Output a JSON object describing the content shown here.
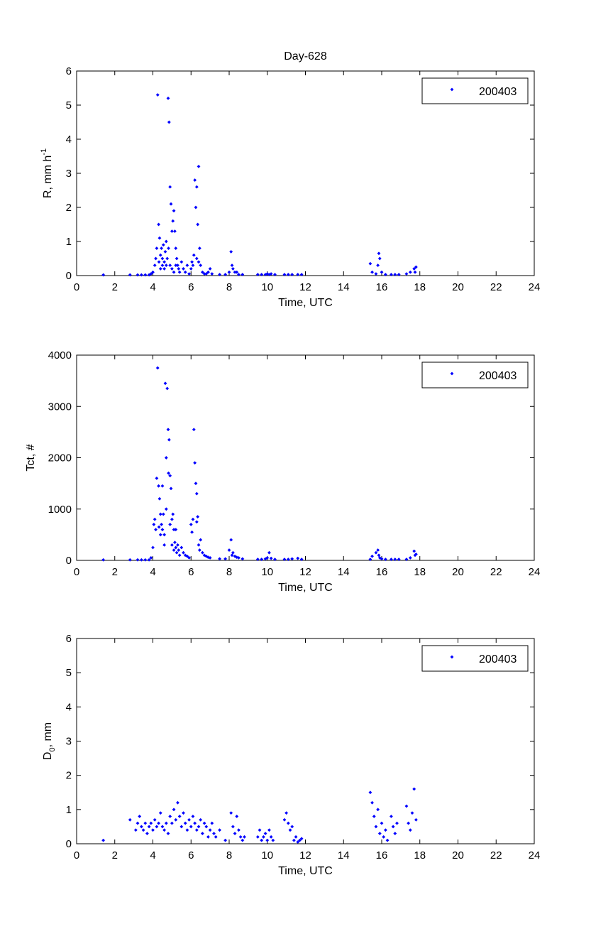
{
  "figure_title": "Day-628",
  "chart_data": [
    {
      "type": "scatter",
      "title": "Day-628",
      "xlabel": "Time, UTC",
      "ylabel": "R, mm h",
      "ylabel_superscript": "-1",
      "xlim": [
        0,
        24
      ],
      "ylim": [
        0,
        6
      ],
      "xticks": [
        0,
        2,
        4,
        6,
        8,
        10,
        12,
        14,
        16,
        18,
        20,
        22,
        24
      ],
      "yticks": [
        0,
        1,
        2,
        3,
        4,
        5,
        6
      ],
      "legend": "200403",
      "legend_position": "top-right",
      "marker_color": "#0000ff",
      "series": [
        {
          "name": "200403",
          "x": [
            1.4,
            2.8,
            3.2,
            3.4,
            3.6,
            3.8,
            3.9,
            4.0,
            4.1,
            4.15,
            4.2,
            4.25,
            4.3,
            4.32,
            4.35,
            4.4,
            4.4,
            4.45,
            4.5,
            4.5,
            4.55,
            4.6,
            4.6,
            4.65,
            4.7,
            4.7,
            4.75,
            4.8,
            4.82,
            4.85,
            4.9,
            4.9,
            4.95,
            5.0,
            5.0,
            5.05,
            5.1,
            5.1,
            5.15,
            5.2,
            5.2,
            5.25,
            5.3,
            5.35,
            5.4,
            5.5,
            5.6,
            5.7,
            5.8,
            5.9,
            6.0,
            6.05,
            6.1,
            6.15,
            6.2,
            6.25,
            6.3,
            6.3,
            6.35,
            6.4,
            6.4,
            6.45,
            6.5,
            6.6,
            6.7,
            6.8,
            6.9,
            7.0,
            7.1,
            7.5,
            7.8,
            8.0,
            8.1,
            8.15,
            8.2,
            8.3,
            8.4,
            8.5,
            8.7,
            9.5,
            9.7,
            9.9,
            10.0,
            10.1,
            10.2,
            10.4,
            10.9,
            11.1,
            11.3,
            11.6,
            11.8,
            15.4,
            15.5,
            15.7,
            15.8,
            15.85,
            15.9,
            16.0,
            16.2,
            16.5,
            16.7,
            16.9,
            17.3,
            17.5,
            17.7,
            17.75,
            17.8
          ],
          "y": [
            0.02,
            0.02,
            0.02,
            0.02,
            0.02,
            0.02,
            0.05,
            0.1,
            0.3,
            0.5,
            0.8,
            5.3,
            1.5,
            0.4,
            1.1,
            0.6,
            0.2,
            0.8,
            0.5,
            0.3,
            0.9,
            0.4,
            0.2,
            0.7,
            1.0,
            0.3,
            0.5,
            5.2,
            0.8,
            4.5,
            2.6,
            0.3,
            2.1,
            1.3,
            0.2,
            1.6,
            1.9,
            0.1,
            1.3,
            0.8,
            0.3,
            0.5,
            0.3,
            0.2,
            0.1,
            0.4,
            0.2,
            0.1,
            0.3,
            0.05,
            0.2,
            0.4,
            0.3,
            0.6,
            2.8,
            2.0,
            2.6,
            0.5,
            1.5,
            3.2,
            0.4,
            0.8,
            0.3,
            0.1,
            0.05,
            0.05,
            0.1,
            0.2,
            0.05,
            0.03,
            0.03,
            0.1,
            0.7,
            0.3,
            0.2,
            0.1,
            0.1,
            0.03,
            0.03,
            0.03,
            0.03,
            0.03,
            0.05,
            0.03,
            0.05,
            0.03,
            0.03,
            0.03,
            0.03,
            0.03,
            0.03,
            0.35,
            0.1,
            0.05,
            0.3,
            0.65,
            0.5,
            0.1,
            0.03,
            0.03,
            0.03,
            0.03,
            0.05,
            0.1,
            0.2,
            0.1,
            0.25
          ]
        }
      ]
    },
    {
      "type": "scatter",
      "xlabel": "Time, UTC",
      "ylabel": "Tct, #",
      "xlim": [
        0,
        24
      ],
      "ylim": [
        0,
        4000
      ],
      "xticks": [
        0,
        2,
        4,
        6,
        8,
        10,
        12,
        14,
        16,
        18,
        20,
        22,
        24
      ],
      "yticks": [
        0,
        1000,
        2000,
        3000,
        4000
      ],
      "legend": "200403",
      "legend_position": "top-right",
      "marker_color": "#0000ff",
      "series": [
        {
          "name": "200403",
          "x": [
            1.4,
            2.8,
            3.2,
            3.4,
            3.6,
            3.8,
            3.9,
            4.0,
            4.05,
            4.1,
            4.15,
            4.2,
            4.25,
            4.3,
            4.32,
            4.35,
            4.4,
            4.4,
            4.45,
            4.5,
            4.5,
            4.55,
            4.6,
            4.6,
            4.65,
            4.7,
            4.7,
            4.75,
            4.8,
            4.82,
            4.85,
            4.9,
            4.9,
            4.95,
            5.0,
            5.0,
            5.05,
            5.1,
            5.1,
            5.15,
            5.2,
            5.2,
            5.25,
            5.3,
            5.35,
            5.4,
            5.5,
            5.6,
            5.7,
            5.8,
            5.9,
            6.0,
            6.05,
            6.1,
            6.15,
            6.2,
            6.25,
            6.3,
            6.3,
            6.35,
            6.4,
            6.45,
            6.5,
            6.6,
            6.7,
            6.8,
            6.9,
            7.0,
            7.5,
            7.8,
            8.0,
            8.1,
            8.15,
            8.2,
            8.3,
            8.4,
            8.5,
            8.7,
            9.5,
            9.7,
            9.9,
            10.0,
            10.1,
            10.2,
            10.4,
            10.9,
            11.1,
            11.3,
            11.6,
            11.8,
            15.4,
            15.5,
            15.7,
            15.8,
            15.85,
            15.9,
            16.0,
            16.2,
            16.5,
            16.7,
            16.9,
            17.3,
            17.5,
            17.7,
            17.75,
            17.8
          ],
          "y": [
            10,
            10,
            10,
            10,
            10,
            10,
            50,
            250,
            700,
            800,
            600,
            1600,
            3750,
            1450,
            650,
            1200,
            900,
            500,
            700,
            1450,
            600,
            900,
            500,
            300,
            3450,
            2000,
            1000,
            3350,
            2550,
            1700,
            2350,
            1650,
            700,
            1400,
            800,
            300,
            900,
            600,
            200,
            350,
            250,
            600,
            150,
            300,
            200,
            100,
            250,
            150,
            100,
            80,
            50,
            700,
            550,
            800,
            2550,
            1900,
            1500,
            750,
            1300,
            850,
            300,
            200,
            400,
            150,
            100,
            80,
            60,
            50,
            30,
            30,
            200,
            400,
            100,
            150,
            80,
            60,
            50,
            30,
            20,
            20,
            30,
            50,
            150,
            40,
            20,
            20,
            20,
            30,
            40,
            20,
            20,
            80,
            150,
            200,
            100,
            50,
            30,
            20,
            20,
            20,
            20,
            20,
            50,
            180,
            100,
            120
          ]
        }
      ]
    },
    {
      "type": "scatter",
      "xlabel": "Time, UTC",
      "ylabel": "D",
      "ylabel_subscript": "0",
      "ylabel_suffix": ", mm",
      "xlim": [
        0,
        24
      ],
      "ylim": [
        0,
        6
      ],
      "xticks": [
        0,
        2,
        4,
        6,
        8,
        10,
        12,
        14,
        16,
        18,
        20,
        22,
        24
      ],
      "yticks": [
        0,
        1,
        2,
        3,
        4,
        5,
        6
      ],
      "legend": "200403",
      "legend_position": "top-right",
      "marker_color": "#0000ff",
      "series": [
        {
          "name": "200403",
          "x": [
            1.4,
            2.8,
            3.1,
            3.2,
            3.3,
            3.4,
            3.5,
            3.6,
            3.7,
            3.8,
            3.9,
            4.0,
            4.1,
            4.2,
            4.3,
            4.4,
            4.5,
            4.6,
            4.7,
            4.8,
            4.9,
            5.0,
            5.1,
            5.2,
            5.3,
            5.4,
            5.5,
            5.6,
            5.7,
            5.8,
            5.9,
            6.0,
            6.1,
            6.2,
            6.3,
            6.4,
            6.5,
            6.6,
            6.7,
            6.8,
            6.9,
            7.0,
            7.1,
            7.2,
            7.3,
            7.5,
            7.8,
            8.1,
            8.2,
            8.3,
            8.4,
            8.5,
            8.6,
            8.7,
            8.8,
            9.5,
            9.6,
            9.7,
            9.8,
            9.9,
            10.0,
            10.1,
            10.2,
            10.3,
            10.9,
            11.0,
            11.1,
            11.2,
            11.3,
            11.4,
            11.5,
            11.6,
            11.7,
            11.8,
            15.4,
            15.5,
            15.6,
            15.7,
            15.8,
            15.9,
            16.0,
            16.1,
            16.2,
            16.3,
            16.5,
            16.6,
            16.7,
            16.8,
            17.3,
            17.4,
            17.5,
            17.6,
            17.7,
            17.8
          ],
          "y": [
            0.1,
            0.7,
            0.4,
            0.6,
            0.8,
            0.5,
            0.4,
            0.6,
            0.3,
            0.5,
            0.6,
            0.4,
            0.7,
            0.5,
            0.6,
            0.9,
            0.5,
            0.4,
            0.6,
            0.3,
            0.8,
            0.6,
            1.0,
            0.7,
            1.2,
            0.8,
            0.5,
            0.9,
            0.6,
            0.4,
            0.7,
            0.5,
            0.8,
            0.6,
            0.4,
            0.5,
            0.7,
            0.3,
            0.6,
            0.5,
            0.2,
            0.4,
            0.6,
            0.3,
            0.2,
            0.4,
            0.1,
            0.9,
            0.5,
            0.3,
            0.8,
            0.4,
            0.2,
            0.1,
            0.2,
            0.2,
            0.4,
            0.1,
            0.2,
            0.3,
            0.1,
            0.4,
            0.2,
            0.1,
            0.7,
            0.9,
            0.6,
            0.4,
            0.5,
            0.1,
            0.2,
            0.05,
            0.1,
            0.15,
            1.5,
            1.2,
            0.8,
            0.5,
            1.0,
            0.3,
            0.6,
            0.2,
            0.4,
            0.1,
            0.8,
            0.5,
            0.3,
            0.6,
            1.1,
            0.6,
            0.4,
            0.9,
            1.6,
            0.7
          ]
        }
      ]
    }
  ]
}
